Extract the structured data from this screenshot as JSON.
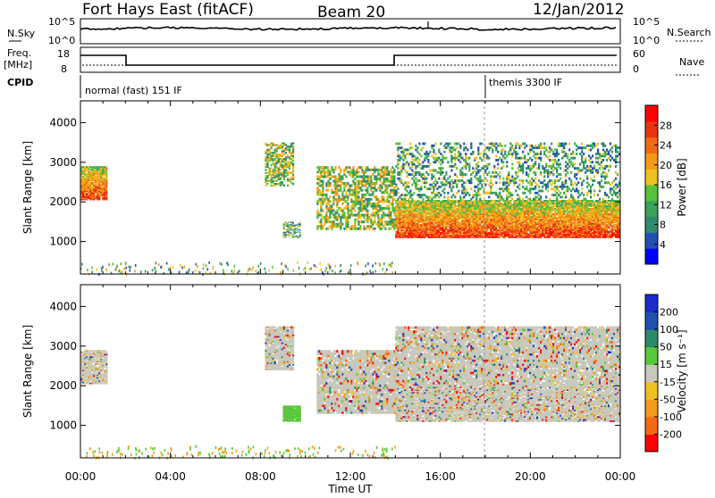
{
  "header": {
    "station": "Fort Hays East (fitACF)",
    "beam": "Beam 20",
    "date": "12/Jan/2012"
  },
  "summary_panels": {
    "nsky_label": "N.Sky",
    "nsky_ticks": [
      "10^5",
      "10^0"
    ],
    "nsearch_label": "N.Search",
    "nsearch_ticks": [
      "10^5",
      "10^0"
    ],
    "freq_label": "Freq.",
    "freq_unit": "[MHz]",
    "freq_ticks": [
      "18",
      "8"
    ],
    "nave_label": "Nave",
    "nave_ticks": [
      "60",
      "0"
    ],
    "cpid_label": "CPID",
    "cpid_modes": [
      "normal (fast) 151 IF",
      "themis 3300 IF"
    ]
  },
  "colors": {
    "power": [
      "#0000ff",
      "#2450b4",
      "#2f8a6e",
      "#3aa05a",
      "#55c23a",
      "#f0c020",
      "#f39a14",
      "#f06a14",
      "#e8330f",
      "#ff0000"
    ],
    "velocity_pos": [
      "#1c2ccc",
      "#2050b0",
      "#2c8a6a",
      "#58c83a"
    ],
    "velocity_grey": "#c8c8bc",
    "velocity_neg": [
      "#f0c020",
      "#f39a14",
      "#f06a14",
      "#ff0000"
    ]
  },
  "chart_data": [
    {
      "type": "heatmap",
      "title": "Power",
      "ylabel": "Slant Range [km]",
      "xlabel": "Time UT",
      "x_ticks": [
        "00:00",
        "04:00",
        "08:00",
        "12:00",
        "16:00",
        "20:00",
        "00:00"
      ],
      "y_ticks": [
        "1000",
        "2000",
        "3000",
        "4000"
      ],
      "xlim": [
        0,
        24
      ],
      "ylim": [
        180,
        4550
      ],
      "colorbar_label": "Power [dB]",
      "colorbar_ticks": [
        "28",
        "24",
        "20",
        "16",
        "12",
        "8",
        "4"
      ],
      "colorbar_range": [
        0,
        32
      ],
      "regions": [
        {
          "t0": 0.0,
          "t1": 1.2,
          "r0": 2050,
          "r1": 2900,
          "intensity": "high"
        },
        {
          "t0": 8.2,
          "t1": 9.5,
          "r0": 2400,
          "r1": 3500,
          "intensity": "mid"
        },
        {
          "t0": 9.0,
          "t1": 9.8,
          "r0": 1100,
          "r1": 1500,
          "intensity": "low"
        },
        {
          "t0": 10.5,
          "t1": 14.0,
          "r0": 1300,
          "r1": 2900,
          "intensity": "mid"
        },
        {
          "t0": 14.0,
          "t1": 24.0,
          "r0": 1100,
          "r1": 2050,
          "intensity": "high"
        },
        {
          "t0": 14.0,
          "t1": 24.0,
          "r0": 2050,
          "r1": 3500,
          "intensity": "low"
        }
      ]
    },
    {
      "type": "heatmap",
      "title": "Velocity",
      "ylabel": "Slant Range [km]",
      "xlabel": "Time UT",
      "x_ticks": [
        "00:00",
        "04:00",
        "08:00",
        "12:00",
        "16:00",
        "20:00",
        "00:00"
      ],
      "y_ticks": [
        "1000",
        "2000",
        "3000",
        "4000"
      ],
      "xlim": [
        0,
        24
      ],
      "ylim": [
        180,
        4550
      ],
      "colorbar_label": "Velocity [m s⁻¹]",
      "colorbar_ticks": [
        "200",
        "100",
        "50",
        "15",
        "-15",
        "-50",
        "-100",
        "-200"
      ],
      "colorbar_range": [
        -250,
        250
      ],
      "regions": [
        {
          "t0": 0.0,
          "t1": 1.2,
          "r0": 2050,
          "r1": 2900,
          "intensity": "grey"
        },
        {
          "t0": 8.2,
          "t1": 9.5,
          "r0": 2400,
          "r1": 3500,
          "intensity": "grey"
        },
        {
          "t0": 9.0,
          "t1": 9.8,
          "r0": 1100,
          "r1": 1500,
          "intensity": "green"
        },
        {
          "t0": 10.5,
          "t1": 14.0,
          "r0": 1300,
          "r1": 2900,
          "intensity": "grey"
        },
        {
          "t0": 14.0,
          "t1": 24.0,
          "r0": 1100,
          "r1": 2050,
          "intensity": "grey"
        },
        {
          "t0": 14.0,
          "t1": 24.0,
          "r0": 2050,
          "r1": 3500,
          "intensity": "grey"
        }
      ]
    }
  ]
}
